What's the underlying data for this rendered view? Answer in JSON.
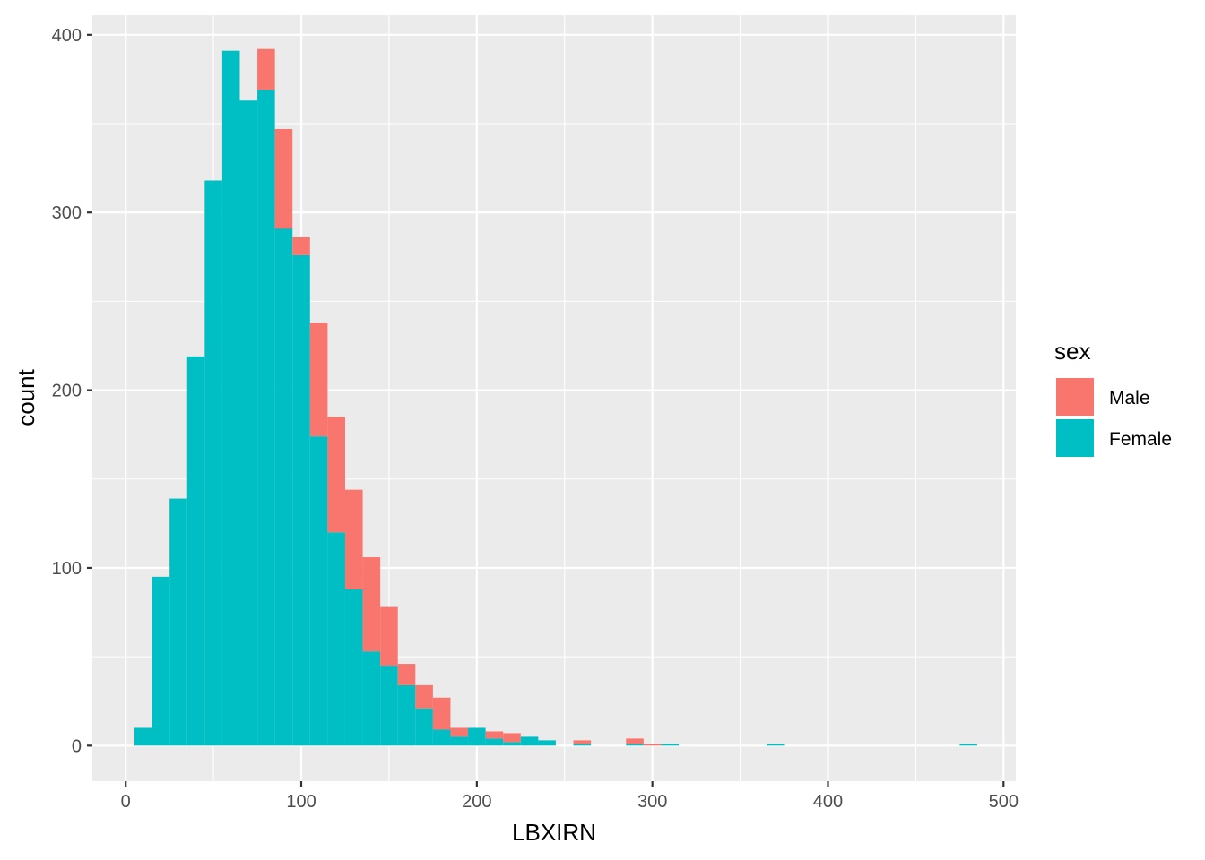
{
  "chart_data": {
    "type": "bar",
    "subtype": "stacked-histogram",
    "xlabel": "LBXIRN",
    "ylabel": "count",
    "xlim": [
      -19,
      507
    ],
    "ylim": [
      -20,
      411
    ],
    "x_ticks": [
      0,
      100,
      200,
      300,
      400,
      500
    ],
    "y_ticks": [
      0,
      100,
      200,
      300,
      400
    ],
    "x_tick_labels": [
      "0",
      "100",
      "200",
      "300",
      "400",
      "500"
    ],
    "y_tick_labels": [
      "0",
      "100",
      "200",
      "300",
      "400"
    ],
    "bin_width": 10,
    "bins_start": [
      5,
      15,
      25,
      35,
      45,
      55,
      65,
      75,
      85,
      95,
      105,
      115,
      125,
      135,
      145,
      155,
      165,
      175,
      185,
      195,
      205,
      215,
      225,
      235,
      255,
      285,
      295,
      305,
      365,
      475
    ],
    "legend": {
      "title": "sex",
      "position": "right"
    },
    "grid": true,
    "series": [
      {
        "name": "Female",
        "color": "#00BFC4",
        "values": [
          10,
          95,
          139,
          219,
          318,
          391,
          363,
          369,
          291,
          276,
          174,
          120,
          88,
          53,
          45,
          34,
          21,
          9,
          5,
          10,
          4,
          2,
          5,
          3,
          1,
          1,
          0,
          1,
          1,
          1
        ]
      },
      {
        "name": "Male",
        "color": "#F8766D",
        "values": [
          0,
          0,
          0,
          0,
          0,
          0,
          0,
          23,
          56,
          10,
          64,
          65,
          56,
          53,
          33,
          12,
          13,
          18,
          5,
          0,
          4,
          5,
          0,
          0,
          2,
          3,
          1,
          0,
          0,
          0
        ]
      }
    ]
  }
}
